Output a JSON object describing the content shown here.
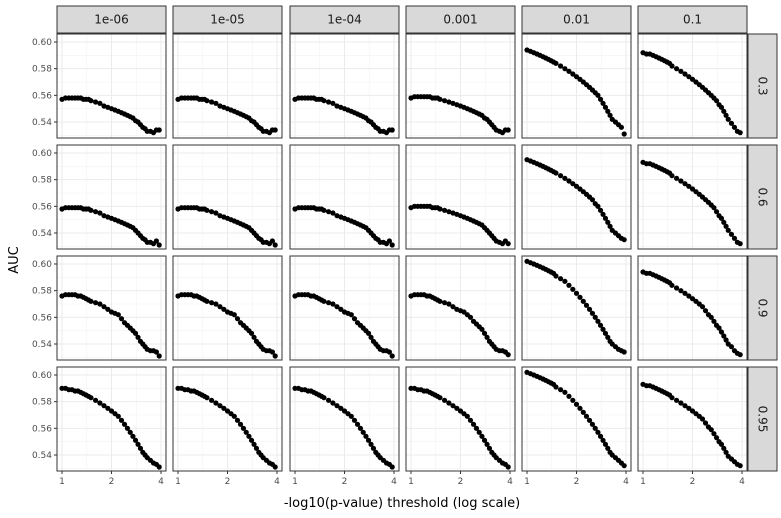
{
  "chart_data": {
    "type": "scatter",
    "xlabel": "-log10(p-value) threshold (log scale)",
    "ylabel": "AUC",
    "x_scale": "log",
    "xlim": [
      1,
      4
    ],
    "ylim": [
      0.528,
      0.606
    ],
    "x_ticks": [
      1,
      2,
      4
    ],
    "y_ticks": [
      0.54,
      0.56,
      0.58,
      0.6
    ],
    "y_tick_labels": [
      "0.54",
      "0.56",
      "0.58",
      "0.60"
    ],
    "grid": true,
    "column_facets": [
      "1e-06",
      "1e-05",
      "1e-04",
      "0.001",
      "0.01",
      "0.1"
    ],
    "row_facets": [
      "0.3",
      "0.6",
      "0.9",
      "0.95"
    ],
    "x": [
      1.0,
      1.05,
      1.1,
      1.15,
      1.2,
      1.25,
      1.3,
      1.35,
      1.4,
      1.45,
      1.5,
      1.6,
      1.7,
      1.8,
      1.9,
      2.0,
      2.1,
      2.2,
      2.3,
      2.4,
      2.5,
      2.6,
      2.7,
      2.8,
      2.9,
      3.0,
      3.1,
      3.2,
      3.3,
      3.45,
      3.6,
      3.75,
      3.9
    ],
    "series": [
      {
        "row": "0.3",
        "col": "1e-06",
        "y": [
          0.557,
          0.558,
          0.558,
          0.558,
          0.558,
          0.558,
          0.558,
          0.557,
          0.557,
          0.557,
          0.556,
          0.555,
          0.554,
          0.552,
          0.551,
          0.55,
          0.549,
          0.548,
          0.547,
          0.546,
          0.545,
          0.544,
          0.543,
          0.541,
          0.54,
          0.538,
          0.536,
          0.535,
          0.533,
          0.533,
          0.532,
          0.534,
          0.534
        ]
      },
      {
        "row": "0.3",
        "col": "1e-05",
        "y": [
          0.557,
          0.558,
          0.558,
          0.558,
          0.558,
          0.558,
          0.558,
          0.557,
          0.557,
          0.557,
          0.556,
          0.555,
          0.554,
          0.552,
          0.551,
          0.55,
          0.549,
          0.548,
          0.547,
          0.546,
          0.545,
          0.544,
          0.543,
          0.541,
          0.54,
          0.538,
          0.536,
          0.535,
          0.533,
          0.533,
          0.532,
          0.534,
          0.534
        ]
      },
      {
        "row": "0.3",
        "col": "1e-04",
        "y": [
          0.557,
          0.558,
          0.558,
          0.558,
          0.558,
          0.558,
          0.558,
          0.557,
          0.557,
          0.557,
          0.556,
          0.555,
          0.554,
          0.552,
          0.551,
          0.55,
          0.549,
          0.548,
          0.547,
          0.546,
          0.545,
          0.544,
          0.543,
          0.541,
          0.54,
          0.538,
          0.536,
          0.535,
          0.533,
          0.533,
          0.532,
          0.534,
          0.534
        ]
      },
      {
        "row": "0.3",
        "col": "0.001",
        "y": [
          0.558,
          0.559,
          0.559,
          0.559,
          0.559,
          0.559,
          0.559,
          0.558,
          0.558,
          0.558,
          0.557,
          0.556,
          0.555,
          0.554,
          0.553,
          0.552,
          0.551,
          0.55,
          0.549,
          0.548,
          0.547,
          0.546,
          0.545,
          0.543,
          0.542,
          0.54,
          0.538,
          0.536,
          0.534,
          0.533,
          0.532,
          0.534,
          0.534
        ]
      },
      {
        "row": "0.3",
        "col": "0.01",
        "y": [
          0.594,
          0.593,
          0.592,
          0.591,
          0.59,
          0.589,
          0.588,
          0.587,
          0.586,
          0.585,
          0.584,
          0.582,
          0.58,
          0.578,
          0.576,
          0.574,
          0.572,
          0.57,
          0.568,
          0.566,
          0.564,
          0.562,
          0.56,
          0.557,
          0.554,
          0.551,
          0.548,
          0.545,
          0.542,
          0.54,
          0.538,
          0.536,
          0.531
        ]
      },
      {
        "row": "0.3",
        "col": "0.1",
        "y": [
          0.592,
          0.591,
          0.591,
          0.59,
          0.589,
          0.588,
          0.587,
          0.586,
          0.585,
          0.584,
          0.582,
          0.58,
          0.578,
          0.576,
          0.574,
          0.572,
          0.57,
          0.568,
          0.566,
          0.564,
          0.562,
          0.56,
          0.558,
          0.556,
          0.553,
          0.551,
          0.548,
          0.545,
          0.542,
          0.539,
          0.536,
          0.533,
          0.532
        ]
      },
      {
        "row": "0.6",
        "col": "1e-06",
        "y": [
          0.558,
          0.559,
          0.559,
          0.559,
          0.559,
          0.559,
          0.559,
          0.558,
          0.558,
          0.558,
          0.557,
          0.556,
          0.555,
          0.553,
          0.552,
          0.551,
          0.55,
          0.549,
          0.548,
          0.547,
          0.546,
          0.545,
          0.544,
          0.542,
          0.54,
          0.538,
          0.536,
          0.535,
          0.533,
          0.533,
          0.532,
          0.534,
          0.531
        ]
      },
      {
        "row": "0.6",
        "col": "1e-05",
        "y": [
          0.558,
          0.559,
          0.559,
          0.559,
          0.559,
          0.559,
          0.559,
          0.558,
          0.558,
          0.558,
          0.557,
          0.556,
          0.555,
          0.553,
          0.552,
          0.551,
          0.55,
          0.549,
          0.548,
          0.547,
          0.546,
          0.545,
          0.544,
          0.542,
          0.54,
          0.538,
          0.536,
          0.535,
          0.533,
          0.533,
          0.532,
          0.534,
          0.531
        ]
      },
      {
        "row": "0.6",
        "col": "1e-04",
        "y": [
          0.558,
          0.559,
          0.559,
          0.559,
          0.559,
          0.559,
          0.559,
          0.558,
          0.558,
          0.558,
          0.557,
          0.556,
          0.555,
          0.553,
          0.552,
          0.551,
          0.55,
          0.549,
          0.548,
          0.547,
          0.546,
          0.545,
          0.544,
          0.542,
          0.54,
          0.538,
          0.536,
          0.535,
          0.533,
          0.533,
          0.532,
          0.534,
          0.531
        ]
      },
      {
        "row": "0.6",
        "col": "0.001",
        "y": [
          0.559,
          0.56,
          0.56,
          0.56,
          0.56,
          0.56,
          0.56,
          0.559,
          0.559,
          0.559,
          0.558,
          0.557,
          0.556,
          0.555,
          0.554,
          0.553,
          0.552,
          0.551,
          0.55,
          0.549,
          0.548,
          0.547,
          0.546,
          0.544,
          0.542,
          0.54,
          0.538,
          0.536,
          0.534,
          0.533,
          0.532,
          0.534,
          0.532
        ]
      },
      {
        "row": "0.6",
        "col": "0.01",
        "y": [
          0.595,
          0.594,
          0.593,
          0.592,
          0.591,
          0.59,
          0.589,
          0.588,
          0.587,
          0.586,
          0.585,
          0.583,
          0.581,
          0.579,
          0.577,
          0.575,
          0.573,
          0.571,
          0.569,
          0.567,
          0.565,
          0.562,
          0.56,
          0.557,
          0.554,
          0.551,
          0.548,
          0.545,
          0.542,
          0.54,
          0.538,
          0.536,
          0.535
        ]
      },
      {
        "row": "0.6",
        "col": "0.1",
        "y": [
          0.593,
          0.592,
          0.592,
          0.591,
          0.59,
          0.589,
          0.588,
          0.587,
          0.586,
          0.585,
          0.583,
          0.581,
          0.579,
          0.577,
          0.575,
          0.573,
          0.571,
          0.569,
          0.567,
          0.565,
          0.563,
          0.561,
          0.559,
          0.556,
          0.553,
          0.551,
          0.548,
          0.545,
          0.542,
          0.539,
          0.536,
          0.533,
          0.532
        ]
      },
      {
        "row": "0.9",
        "col": "1e-06",
        "y": [
          0.576,
          0.577,
          0.577,
          0.577,
          0.577,
          0.576,
          0.576,
          0.575,
          0.574,
          0.573,
          0.572,
          0.571,
          0.57,
          0.568,
          0.566,
          0.564,
          0.563,
          0.562,
          0.559,
          0.556,
          0.554,
          0.552,
          0.55,
          0.548,
          0.545,
          0.542,
          0.54,
          0.538,
          0.536,
          0.535,
          0.535,
          0.534,
          0.531
        ]
      },
      {
        "row": "0.9",
        "col": "1e-05",
        "y": [
          0.576,
          0.577,
          0.577,
          0.577,
          0.577,
          0.576,
          0.576,
          0.575,
          0.574,
          0.573,
          0.572,
          0.571,
          0.57,
          0.568,
          0.566,
          0.564,
          0.563,
          0.562,
          0.559,
          0.556,
          0.554,
          0.552,
          0.55,
          0.548,
          0.545,
          0.542,
          0.54,
          0.538,
          0.536,
          0.535,
          0.535,
          0.534,
          0.531
        ]
      },
      {
        "row": "0.9",
        "col": "1e-04",
        "y": [
          0.576,
          0.577,
          0.577,
          0.577,
          0.577,
          0.576,
          0.576,
          0.575,
          0.574,
          0.573,
          0.572,
          0.571,
          0.57,
          0.568,
          0.566,
          0.564,
          0.563,
          0.562,
          0.559,
          0.556,
          0.554,
          0.552,
          0.55,
          0.548,
          0.545,
          0.542,
          0.54,
          0.538,
          0.536,
          0.535,
          0.535,
          0.534,
          0.531
        ]
      },
      {
        "row": "0.9",
        "col": "0.001",
        "y": [
          0.576,
          0.577,
          0.577,
          0.577,
          0.577,
          0.576,
          0.576,
          0.575,
          0.574,
          0.573,
          0.572,
          0.571,
          0.57,
          0.568,
          0.566,
          0.565,
          0.564,
          0.562,
          0.56,
          0.557,
          0.555,
          0.553,
          0.551,
          0.548,
          0.545,
          0.542,
          0.54,
          0.538,
          0.536,
          0.535,
          0.535,
          0.534,
          0.532
        ]
      },
      {
        "row": "0.9",
        "col": "0.01",
        "y": [
          0.602,
          0.601,
          0.6,
          0.599,
          0.598,
          0.597,
          0.596,
          0.595,
          0.594,
          0.593,
          0.591,
          0.589,
          0.587,
          0.584,
          0.581,
          0.578,
          0.575,
          0.572,
          0.569,
          0.566,
          0.563,
          0.56,
          0.557,
          0.554,
          0.551,
          0.548,
          0.545,
          0.542,
          0.54,
          0.538,
          0.536,
          0.535,
          0.534
        ]
      },
      {
        "row": "0.9",
        "col": "0.1",
        "y": [
          0.594,
          0.593,
          0.593,
          0.592,
          0.591,
          0.59,
          0.589,
          0.588,
          0.587,
          0.586,
          0.584,
          0.582,
          0.58,
          0.578,
          0.576,
          0.574,
          0.572,
          0.57,
          0.568,
          0.565,
          0.562,
          0.56,
          0.557,
          0.554,
          0.552,
          0.549,
          0.546,
          0.543,
          0.54,
          0.538,
          0.535,
          0.533,
          0.532
        ]
      },
      {
        "row": "0.95",
        "col": "1e-06",
        "y": [
          0.59,
          0.59,
          0.589,
          0.589,
          0.588,
          0.588,
          0.587,
          0.586,
          0.585,
          0.584,
          0.583,
          0.581,
          0.579,
          0.577,
          0.575,
          0.573,
          0.571,
          0.569,
          0.566,
          0.563,
          0.56,
          0.557,
          0.554,
          0.551,
          0.548,
          0.545,
          0.542,
          0.54,
          0.538,
          0.536,
          0.534,
          0.533,
          0.531
        ]
      },
      {
        "row": "0.95",
        "col": "1e-05",
        "y": [
          0.59,
          0.59,
          0.589,
          0.589,
          0.588,
          0.588,
          0.587,
          0.586,
          0.585,
          0.584,
          0.583,
          0.581,
          0.579,
          0.577,
          0.575,
          0.573,
          0.571,
          0.569,
          0.566,
          0.563,
          0.56,
          0.557,
          0.554,
          0.551,
          0.548,
          0.545,
          0.542,
          0.54,
          0.538,
          0.536,
          0.534,
          0.533,
          0.531
        ]
      },
      {
        "row": "0.95",
        "col": "1e-04",
        "y": [
          0.59,
          0.59,
          0.589,
          0.589,
          0.588,
          0.588,
          0.587,
          0.586,
          0.585,
          0.584,
          0.583,
          0.581,
          0.579,
          0.577,
          0.575,
          0.573,
          0.571,
          0.569,
          0.566,
          0.563,
          0.56,
          0.557,
          0.554,
          0.551,
          0.548,
          0.545,
          0.542,
          0.54,
          0.538,
          0.536,
          0.534,
          0.533,
          0.531
        ]
      },
      {
        "row": "0.95",
        "col": "0.001",
        "y": [
          0.59,
          0.59,
          0.589,
          0.589,
          0.588,
          0.588,
          0.587,
          0.586,
          0.585,
          0.584,
          0.583,
          0.581,
          0.579,
          0.577,
          0.575,
          0.573,
          0.571,
          0.569,
          0.566,
          0.563,
          0.56,
          0.557,
          0.554,
          0.551,
          0.548,
          0.545,
          0.542,
          0.54,
          0.538,
          0.536,
          0.534,
          0.533,
          0.531
        ]
      },
      {
        "row": "0.95",
        "col": "0.01",
        "y": [
          0.602,
          0.601,
          0.6,
          0.599,
          0.598,
          0.597,
          0.596,
          0.595,
          0.594,
          0.593,
          0.591,
          0.589,
          0.587,
          0.584,
          0.581,
          0.578,
          0.575,
          0.572,
          0.569,
          0.566,
          0.563,
          0.56,
          0.557,
          0.554,
          0.551,
          0.548,
          0.545,
          0.542,
          0.54,
          0.538,
          0.536,
          0.534,
          0.532
        ]
      },
      {
        "row": "0.95",
        "col": "0.1",
        "y": [
          0.593,
          0.592,
          0.592,
          0.591,
          0.59,
          0.589,
          0.588,
          0.587,
          0.586,
          0.585,
          0.583,
          0.581,
          0.579,
          0.577,
          0.575,
          0.573,
          0.571,
          0.569,
          0.567,
          0.564,
          0.561,
          0.559,
          0.556,
          0.553,
          0.55,
          0.548,
          0.545,
          0.542,
          0.539,
          0.537,
          0.535,
          0.533,
          0.532
        ]
      }
    ]
  }
}
